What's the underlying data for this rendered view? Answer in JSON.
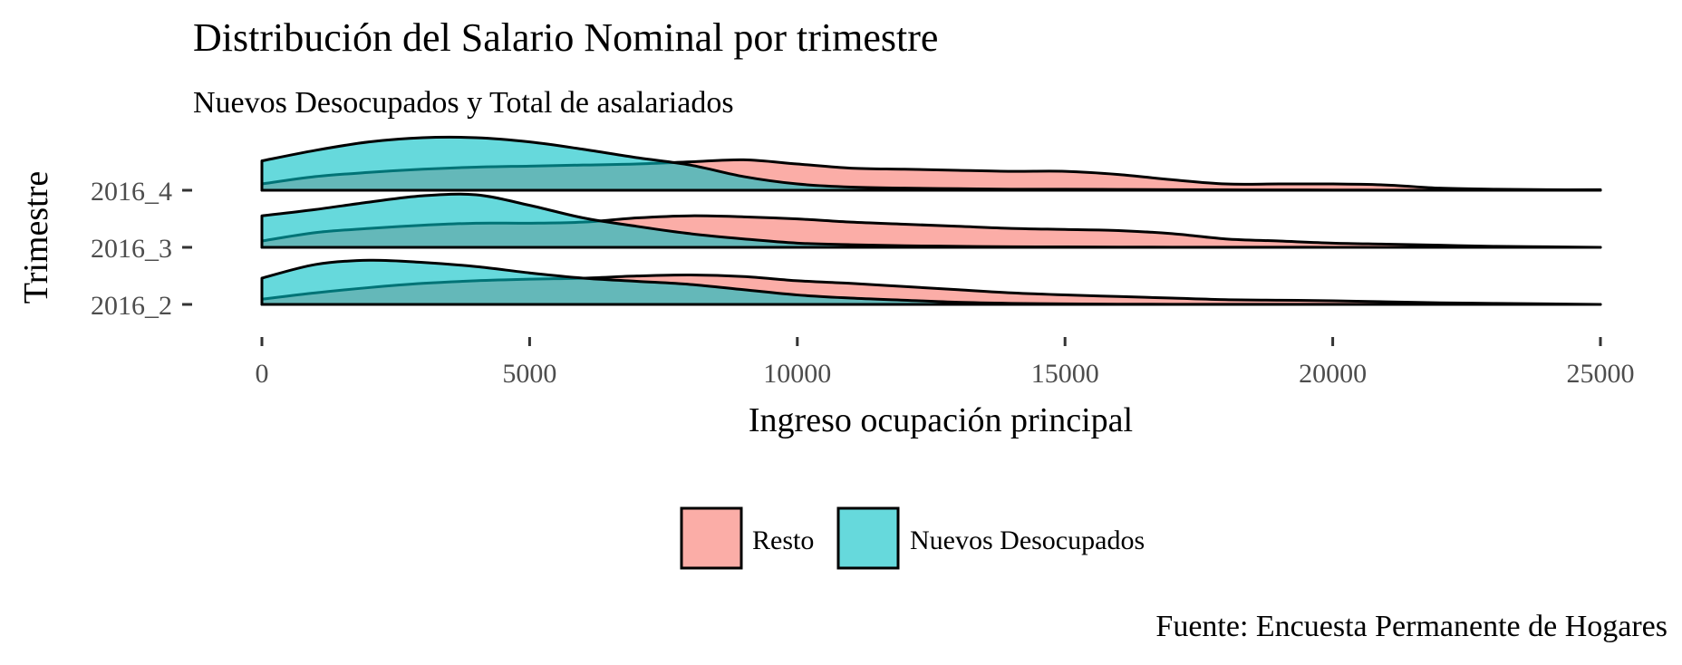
{
  "chart_data": {
    "type": "area",
    "subtype": "ridgeline-density",
    "title": "Distribución del Salario Nominal por trimestre",
    "subtitle": "Nuevos Desocupados y Total de asalariados",
    "caption": "Fuente: Encuesta Permanente de Hogares",
    "xlabel": "Ingreso ocupación principal",
    "ylabel": "Trimestre",
    "xlim": [
      0,
      25000
    ],
    "x_ticks": [
      "0",
      "5000",
      "10000",
      "15000",
      "20000",
      "25000"
    ],
    "categories": [
      "2016_2",
      "2016_3",
      "2016_4"
    ],
    "grid": false,
    "legend_position": "bottom",
    "legend": [
      {
        "name": "Resto",
        "color": "#F8766D"
      },
      {
        "name": "Nuevos Desocupados",
        "color": "#00BFC4"
      }
    ],
    "x": [
      0,
      1000,
      2000,
      3000,
      4000,
      5000,
      6000,
      7000,
      8000,
      9000,
      10000,
      11000,
      12000,
      13000,
      14000,
      15000,
      16000,
      17000,
      18000,
      19000,
      20000,
      21000,
      22000,
      23000,
      24000,
      25000
    ],
    "ridges": [
      {
        "quarter": "2016_2",
        "series": [
          {
            "name": "Resto",
            "values": [
              0.1,
              0.22,
              0.32,
              0.4,
              0.45,
              0.48,
              0.5,
              0.54,
              0.56,
              0.53,
              0.45,
              0.4,
              0.34,
              0.28,
              0.22,
              0.18,
              0.15,
              0.12,
              0.09,
              0.08,
              0.07,
              0.05,
              0.03,
              0.02,
              0.01,
              0.0
            ]
          },
          {
            "name": "Nuevos Desocupados",
            "values": [
              0.5,
              0.76,
              0.84,
              0.8,
              0.72,
              0.6,
              0.5,
              0.44,
              0.38,
              0.28,
              0.18,
              0.12,
              0.08,
              0.04,
              0.02,
              0.01,
              0.005,
              0.003,
              0.002,
              0.002,
              0.002,
              0.001,
              0.0,
              0.0,
              0.0,
              0.0
            ]
          }
        ]
      },
      {
        "quarter": "2016_3",
        "series": [
          {
            "name": "Resto",
            "values": [
              0.12,
              0.28,
              0.36,
              0.42,
              0.46,
              0.46,
              0.48,
              0.56,
              0.6,
              0.58,
              0.54,
              0.48,
              0.44,
              0.4,
              0.36,
              0.34,
              0.32,
              0.26,
              0.16,
              0.12,
              0.08,
              0.06,
              0.04,
              0.02,
              0.01,
              0.0
            ]
          },
          {
            "name": "Nuevos Desocupados",
            "values": [
              0.6,
              0.72,
              0.86,
              0.98,
              1.0,
              0.8,
              0.56,
              0.4,
              0.26,
              0.16,
              0.08,
              0.05,
              0.03,
              0.02,
              0.01,
              0.008,
              0.005,
              0.003,
              0.002,
              0.002,
              0.001,
              0.0,
              0.0,
              0.0,
              0.0,
              0.0
            ]
          }
        ]
      },
      {
        "quarter": "2016_4",
        "series": [
          {
            "name": "Resto",
            "values": [
              0.12,
              0.26,
              0.34,
              0.4,
              0.44,
              0.46,
              0.48,
              0.5,
              0.54,
              0.58,
              0.5,
              0.42,
              0.4,
              0.38,
              0.36,
              0.36,
              0.3,
              0.2,
              0.12,
              0.12,
              0.12,
              0.1,
              0.04,
              0.02,
              0.01,
              0.01
            ]
          },
          {
            "name": "Nuevos Desocupados",
            "values": [
              0.56,
              0.76,
              0.92,
              1.0,
              1.0,
              0.92,
              0.78,
              0.62,
              0.48,
              0.26,
              0.12,
              0.06,
              0.04,
              0.03,
              0.02,
              0.02,
              0.015,
              0.01,
              0.008,
              0.006,
              0.005,
              0.003,
              0.002,
              0.001,
              0.0,
              0.0
            ]
          }
        ]
      }
    ]
  }
}
